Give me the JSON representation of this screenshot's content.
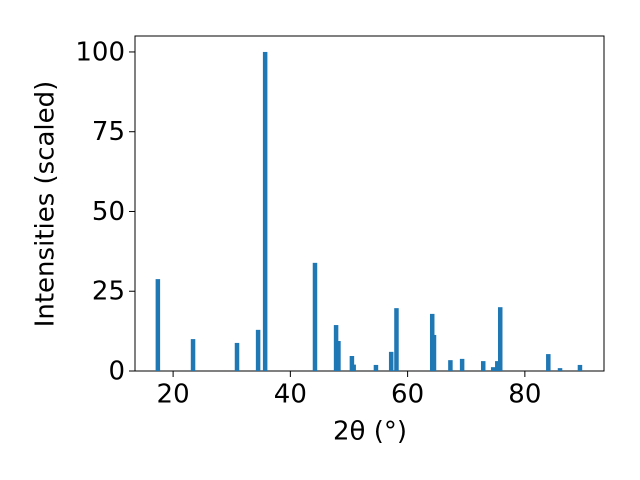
{
  "chart_data": {
    "type": "bar",
    "xlabel": "2θ (°)",
    "ylabel": "Intensities (scaled)",
    "x": [
      17.4,
      23.4,
      30.9,
      34.5,
      35.7,
      44.2,
      47.8,
      48.2,
      50.5,
      50.8,
      54.6,
      57.2,
      58.1,
      64.2,
      64.5,
      67.3,
      69.3,
      72.9,
      74.6,
      75.3,
      75.8,
      84.0,
      86.0,
      89.4
    ],
    "values": [
      28.8,
      10,
      8.8,
      12.9,
      100,
      33.9,
      14.4,
      9.4,
      4.7,
      2,
      1.9,
      6,
      19.7,
      17.9,
      11.3,
      3.4,
      3.8,
      3.1,
      1.2,
      3.1,
      20,
      5.3,
      0.9,
      1.9
    ],
    "color": "#1f77b4",
    "xlim": [
      13.5,
      93.5
    ],
    "ylim": [
      0,
      105
    ],
    "xticks": [
      20,
      40,
      60,
      80
    ],
    "yticks": [
      0,
      25,
      50,
      75,
      100
    ]
  }
}
